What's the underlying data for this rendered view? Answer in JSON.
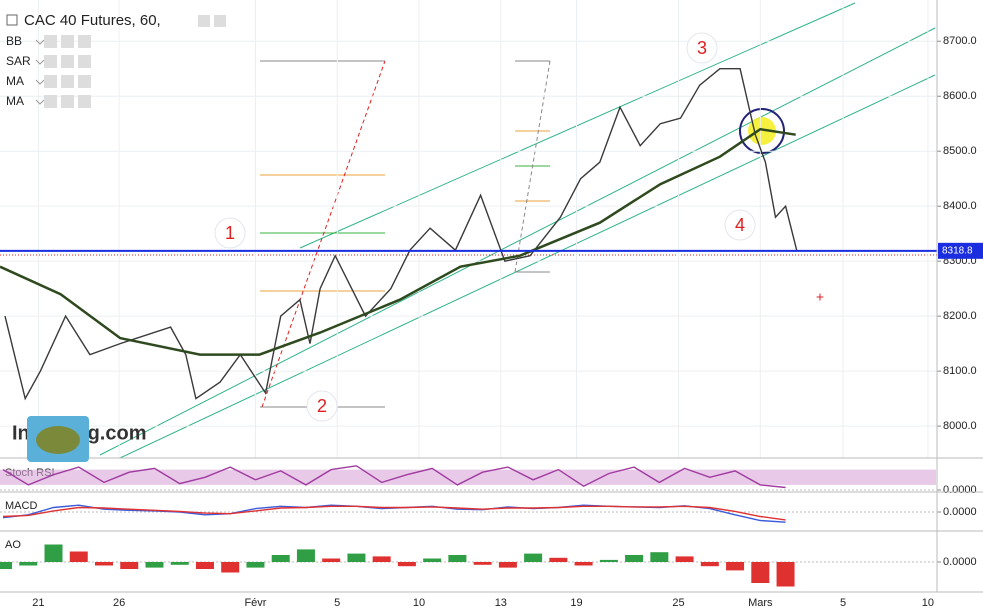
{
  "header": {
    "title": "CAC 40 Futures, 60,",
    "indicators": [
      "BB",
      "SAR",
      "MA",
      "MA"
    ],
    "watermark": "Investing.com"
  },
  "chart_data": [
    {
      "type": "line",
      "xlim": [
        -3.8,
        88.9
      ],
      "ylim": [
        7942,
        8775
      ],
      "xticks": [
        {
          "value": 0,
          "label": "21"
        },
        {
          "value": 8,
          "label": "26"
        },
        {
          "value": 21.5,
          "label": "Févr"
        },
        {
          "value": 29.6,
          "label": "5"
        },
        {
          "value": 37.7,
          "label": "10"
        },
        {
          "value": 45.8,
          "label": "13"
        },
        {
          "value": 53.3,
          "label": "19"
        },
        {
          "value": 63.4,
          "label": "25"
        },
        {
          "value": 71.5,
          "label": "Mars"
        },
        {
          "value": 79.7,
          "label": "5"
        },
        {
          "value": 88.1,
          "label": "10"
        }
      ],
      "yticks": [
        {
          "value": 8000,
          "label": "8000.0"
        },
        {
          "value": 8100,
          "label": "8100.0"
        },
        {
          "value": 8200,
          "label": "8200.0"
        },
        {
          "value": 8300,
          "label": "8300.0"
        },
        {
          "value": 8400,
          "label": "8400.0"
        },
        {
          "value": 8500,
          "label": "8500.0"
        },
        {
          "value": 8600,
          "label": "8600.0"
        },
        {
          "value": 8700,
          "label": "8700.0"
        }
      ],
      "grid": true,
      "series": [
        {
          "color": "#3a3a3a",
          "x": [
            -3.3,
            -1.3,
            0.2,
            2.7,
            5.1,
            8.1,
            13.1,
            14.6,
            15.6,
            18.0,
            20.0,
            22.5,
            24.0,
            25.9,
            26.9,
            27.9,
            29.4,
            32.4,
            34.9,
            36.8,
            38.8,
            41.3,
            43.8,
            46.2,
            48.7,
            51.7,
            53.7,
            55.6,
            57.6,
            59.6,
            61.6,
            63.6,
            65.5,
            67.5,
            69.5,
            71.0,
            72.0,
            73.0,
            74.0,
            75.1
          ],
          "values": [
            8200,
            8050,
            8100,
            8200,
            8130,
            8150,
            8180,
            8130,
            8050,
            8080,
            8130,
            8060,
            8200,
            8230,
            8150,
            8250,
            8310,
            8200,
            8250,
            8320,
            8360,
            8320,
            8420,
            8300,
            8310,
            8380,
            8450,
            8480,
            8580,
            8510,
            8550,
            8560,
            8620,
            8650,
            8650,
            8530,
            8480,
            8380,
            8400,
            8320
          ]
        },
        {
          "color": "#2e4a1e",
          "x": [
            -3.8,
            2.2,
            8.1,
            16.0,
            21.9,
            27.9,
            35.8,
            41.8,
            47.7,
            55.6,
            61.6,
            67.5,
            71.5,
            75.0
          ],
          "values": [
            8290,
            8240,
            8160,
            8130,
            8130,
            8170,
            8230,
            8290,
            8310,
            8370,
            8440,
            8490,
            8540,
            8530
          ]
        }
      ],
      "price_line": {
        "value": 8318.8,
        "label": "8318.8",
        "color": "#1a2ee0"
      },
      "annotations": [
        "1",
        "2",
        "3",
        "4"
      ]
    },
    {
      "type": "line",
      "title": "Stoch RSI",
      "ylim": [
        0,
        110
      ],
      "yticks": [
        {
          "value": 0,
          "label": "0.0000"
        }
      ],
      "bands": [
        20,
        80
      ],
      "series": [
        {
          "color": "#a03aa0",
          "x": [
            -3.5,
            -1,
            1.5,
            4,
            6.5,
            9,
            11.5,
            14,
            16.5,
            19,
            21.5,
            24,
            26.5,
            29,
            31.5,
            34,
            36.5,
            39,
            41.5,
            44,
            46.5,
            49,
            51.5,
            54,
            56.5,
            59,
            61.5,
            64,
            66.5,
            69,
            71.5,
            74
          ],
          "values": [
            80,
            20,
            60,
            90,
            30,
            70,
            85,
            25,
            50,
            90,
            40,
            75,
            20,
            80,
            95,
            30,
            60,
            85,
            20,
            70,
            90,
            40,
            80,
            15,
            65,
            90,
            30,
            85,
            50,
            75,
            20,
            10
          ]
        }
      ]
    },
    {
      "type": "line",
      "title": "MACD",
      "ylim": [
        -30,
        30
      ],
      "yticks": [
        {
          "value": 0,
          "label": "0.0000"
        }
      ],
      "series": [
        {
          "color": "#3b5bdb",
          "x": [
            -3.5,
            -1,
            1.5,
            4,
            6.5,
            9,
            11.5,
            14,
            16.5,
            19,
            21.5,
            24,
            26.5,
            29,
            31.5,
            34,
            36.5,
            39,
            41.5,
            44,
            46.5,
            49,
            51.5,
            54,
            56.5,
            59,
            61.5,
            64,
            66.5,
            69,
            71.5,
            74
          ],
          "values": [
            -10,
            -5,
            8,
            12,
            5,
            3,
            2,
            0,
            -5,
            -3,
            6,
            10,
            8,
            12,
            10,
            6,
            8,
            10,
            5,
            4,
            9,
            6,
            8,
            12,
            10,
            9,
            8,
            11,
            6,
            -5,
            -15,
            -18
          ]
        },
        {
          "color": "#e03131",
          "x": [
            -3.5,
            -1,
            1.5,
            4,
            6.5,
            9,
            11.5,
            14,
            16.5,
            19,
            21.5,
            24,
            26.5,
            29,
            31.5,
            34,
            36.5,
            39,
            41.5,
            44,
            46.5,
            49,
            51.5,
            54,
            56.5,
            59,
            61.5,
            64,
            66.5,
            69,
            71.5,
            74
          ],
          "values": [
            -8,
            -6,
            2,
            8,
            7,
            5,
            3,
            1,
            -2,
            -3,
            2,
            7,
            8,
            10,
            10,
            8,
            8,
            9,
            7,
            5,
            7,
            7,
            8,
            10,
            10,
            9,
            9,
            10,
            8,
            1,
            -8,
            -14
          ]
        }
      ]
    },
    {
      "type": "bar",
      "title": "AO",
      "ylim": [
        -40,
        40
      ],
      "yticks": [
        {
          "value": 0,
          "label": "0.0000"
        }
      ],
      "up_color": "#2f9e44",
      "down_color": "#e03131",
      "x": [
        -3.5,
        -1,
        1.5,
        4,
        6.5,
        9,
        11.5,
        14,
        16.5,
        19,
        21.5,
        24,
        26.5,
        29,
        31.5,
        34,
        36.5,
        39,
        41.5,
        44,
        46.5,
        49,
        51.5,
        54,
        56.5,
        59,
        61.5,
        64,
        66.5,
        69,
        71.5,
        74
      ],
      "values": [
        -10,
        -5,
        25,
        15,
        -5,
        -10,
        -8,
        -4,
        -10,
        -15,
        -8,
        10,
        18,
        5,
        12,
        8,
        -6,
        5,
        10,
        -4,
        -8,
        12,
        6,
        -5,
        3,
        10,
        14,
        8,
        -6,
        -12,
        -30,
        -35
      ]
    }
  ]
}
